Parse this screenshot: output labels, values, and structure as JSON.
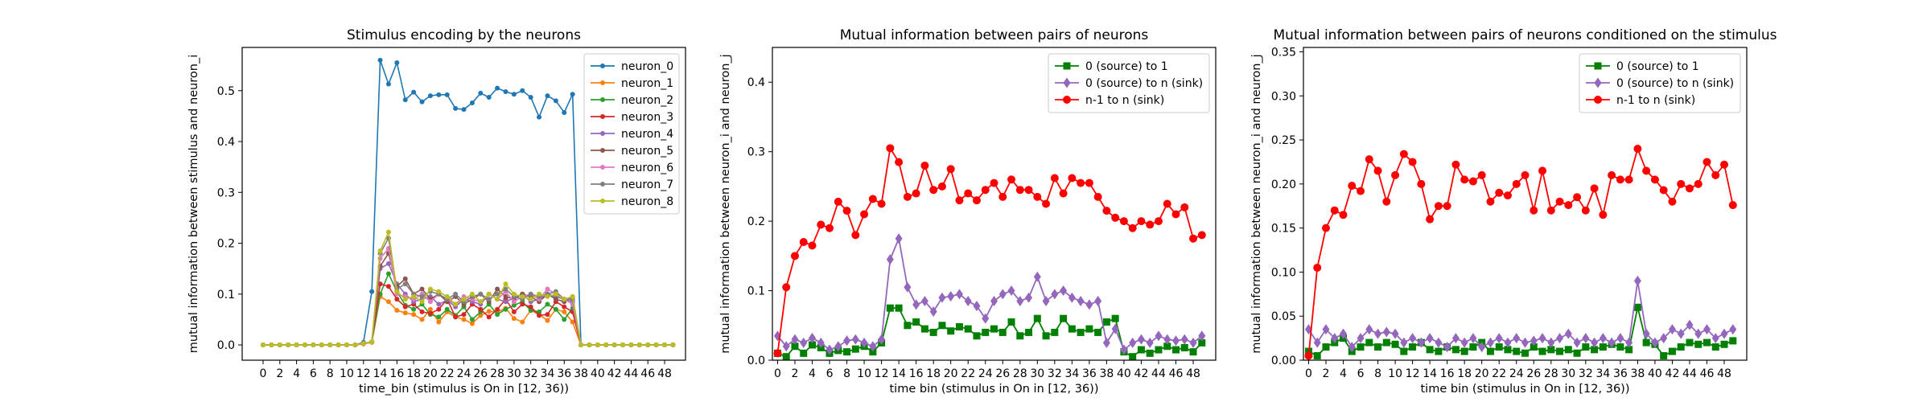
{
  "chart_data": [
    {
      "type": "line",
      "title": "Stimulus encoding by the neurons",
      "xlabel": "time_bin (stimulus is On in [12, 36))",
      "ylabel": "mutual information between stimulus and neuron_i",
      "xlim": [
        -2.5,
        50.5
      ],
      "ylim": [
        -0.03,
        0.585
      ],
      "xticks": [
        "0",
        "2",
        "4",
        "6",
        "8",
        "10",
        "12",
        "14",
        "16",
        "18",
        "20",
        "22",
        "24",
        "26",
        "28",
        "30",
        "32",
        "34",
        "36",
        "38",
        "40",
        "42",
        "44",
        "46",
        "48"
      ],
      "yticks": [
        "0.0",
        "0.1",
        "0.2",
        "0.3",
        "0.4",
        "0.5"
      ],
      "legend_position": "upper right",
      "grid": false,
      "series": [
        {
          "name": "neuron_0",
          "color": "#1f77b4",
          "marker": "circle",
          "values": [
            0,
            0,
            0,
            0,
            0,
            0,
            0,
            0,
            0,
            0,
            0,
            0,
            0.005,
            0.105,
            0.56,
            0.513,
            0.555,
            0.482,
            0.497,
            0.478,
            0.49,
            0.492,
            0.492,
            0.465,
            0.463,
            0.476,
            0.495,
            0.487,
            0.505,
            0.498,
            0.493,
            0.5,
            0.487,
            0.448,
            0.49,
            0.48,
            0.457,
            0.493,
            0,
            0,
            0,
            0,
            0,
            0,
            0,
            0,
            0,
            0,
            0,
            0
          ]
        },
        {
          "name": "neuron_1",
          "color": "#ff7f0e",
          "marker": "circle",
          "values": [
            0,
            0,
            0,
            0,
            0,
            0,
            0,
            0,
            0,
            0,
            0,
            0,
            0.002,
            0.005,
            0.095,
            0.085,
            0.068,
            0.063,
            0.06,
            0.05,
            0.07,
            0.045,
            0.065,
            0.055,
            0.05,
            0.042,
            0.058,
            0.066,
            0.065,
            0.072,
            0.052,
            0.045,
            0.068,
            0.06,
            0.048,
            0.07,
            0.065,
            0.045,
            0,
            0,
            0,
            0,
            0,
            0,
            0,
            0,
            0,
            0,
            0,
            0
          ]
        },
        {
          "name": "neuron_2",
          "color": "#2ca02c",
          "marker": "circle",
          "values": [
            0,
            0,
            0,
            0,
            0,
            0,
            0,
            0,
            0,
            0,
            0,
            0,
            0.003,
            0.006,
            0.1,
            0.14,
            0.105,
            0.078,
            0.07,
            0.08,
            0.06,
            0.055,
            0.07,
            0.058,
            0.075,
            0.05,
            0.065,
            0.08,
            0.06,
            0.07,
            0.078,
            0.085,
            0.068,
            0.065,
            0.08,
            0.07,
            0.05,
            0.072,
            0,
            0,
            0,
            0,
            0,
            0,
            0,
            0,
            0,
            0,
            0,
            0
          ]
        },
        {
          "name": "neuron_3",
          "color": "#d62728",
          "marker": "circle",
          "values": [
            0,
            0,
            0,
            0,
            0,
            0,
            0,
            0,
            0,
            0,
            0,
            0,
            0.003,
            0.006,
            0.12,
            0.115,
            0.09,
            0.075,
            0.08,
            0.065,
            0.062,
            0.07,
            0.09,
            0.055,
            0.06,
            0.08,
            0.07,
            0.055,
            0.07,
            0.09,
            0.065,
            0.08,
            0.075,
            0.058,
            0.06,
            0.085,
            0.075,
            0.065,
            0,
            0,
            0,
            0,
            0,
            0,
            0,
            0,
            0,
            0,
            0,
            0
          ]
        },
        {
          "name": "neuron_4",
          "color": "#9467bd",
          "marker": "circle",
          "values": [
            0,
            0,
            0,
            0,
            0,
            0,
            0,
            0,
            0,
            0,
            0,
            0,
            0.003,
            0.006,
            0.15,
            0.16,
            0.12,
            0.1,
            0.085,
            0.09,
            0.095,
            0.08,
            0.088,
            0.075,
            0.09,
            0.085,
            0.08,
            0.1,
            0.09,
            0.085,
            0.092,
            0.1,
            0.085,
            0.09,
            0.1,
            0.095,
            0.09,
            0.085,
            0,
            0,
            0,
            0,
            0,
            0,
            0,
            0,
            0,
            0,
            0,
            0
          ]
        },
        {
          "name": "neuron_5",
          "color": "#8c564b",
          "marker": "circle",
          "values": [
            0,
            0,
            0,
            0,
            0,
            0,
            0,
            0,
            0,
            0,
            0,
            0,
            0.003,
            0.006,
            0.155,
            0.18,
            0.115,
            0.13,
            0.1,
            0.11,
            0.09,
            0.1,
            0.085,
            0.095,
            0.08,
            0.09,
            0.1,
            0.085,
            0.11,
            0.095,
            0.09,
            0.1,
            0.095,
            0.085,
            0.1,
            0.09,
            0.085,
            0.095,
            0,
            0,
            0,
            0,
            0,
            0,
            0,
            0,
            0,
            0,
            0,
            0
          ]
        },
        {
          "name": "neuron_6",
          "color": "#e377c2",
          "marker": "circle",
          "values": [
            0,
            0,
            0,
            0,
            0,
            0,
            0,
            0,
            0,
            0,
            0,
            0,
            0.003,
            0.006,
            0.17,
            0.19,
            0.1,
            0.095,
            0.09,
            0.1,
            0.085,
            0.1,
            0.09,
            0.08,
            0.095,
            0.09,
            0.085,
            0.1,
            0.09,
            0.105,
            0.085,
            0.095,
            0.1,
            0.09,
            0.11,
            0.1,
            0.09,
            0.08,
            0,
            0,
            0,
            0,
            0,
            0,
            0,
            0,
            0,
            0,
            0,
            0
          ]
        },
        {
          "name": "neuron_7",
          "color": "#7f7f7f",
          "marker": "circle",
          "values": [
            0,
            0,
            0,
            0,
            0,
            0,
            0,
            0,
            0,
            0,
            0,
            0,
            0.003,
            0.006,
            0.18,
            0.21,
            0.11,
            0.12,
            0.1,
            0.095,
            0.105,
            0.1,
            0.09,
            0.1,
            0.085,
            0.095,
            0.1,
            0.09,
            0.1,
            0.11,
            0.095,
            0.09,
            0.1,
            0.095,
            0.1,
            0.105,
            0.09,
            0.09,
            0,
            0,
            0,
            0,
            0,
            0,
            0,
            0,
            0,
            0,
            0,
            0
          ]
        },
        {
          "name": "neuron_8",
          "color": "#bcbd22",
          "marker": "circle",
          "values": [
            0,
            0,
            0,
            0,
            0,
            0,
            0,
            0,
            0,
            0,
            0,
            0,
            0.003,
            0.006,
            0.185,
            0.222,
            0.105,
            0.09,
            0.095,
            0.085,
            0.11,
            0.105,
            0.095,
            0.08,
            0.09,
            0.1,
            0.085,
            0.1,
            0.09,
            0.12,
            0.1,
            0.095,
            0.09,
            0.1,
            0.095,
            0.1,
            0.09,
            0.095,
            0,
            0,
            0,
            0,
            0,
            0,
            0,
            0,
            0,
            0,
            0,
            0
          ]
        }
      ]
    },
    {
      "type": "line",
      "title": "Mutual information between pairs of neurons",
      "xlabel": "time bin (stimulus in On in [12, 36))",
      "ylabel": "mutual information between neuron_i and neuron_j",
      "xlim": [
        -0.6,
        50.6
      ],
      "ylim": [
        0,
        0.45
      ],
      "xticks": [
        "0",
        "2",
        "4",
        "6",
        "8",
        "10",
        "12",
        "14",
        "16",
        "18",
        "20",
        "22",
        "24",
        "26",
        "28",
        "30",
        "32",
        "34",
        "36",
        "38",
        "40",
        "42",
        "44",
        "46",
        "48"
      ],
      "yticks": [
        "0.0",
        "0.1",
        "0.2",
        "0.3",
        "0.4"
      ],
      "legend_position": "upper right",
      "grid": false,
      "series": [
        {
          "name": "0 (source) to 1",
          "color": "#008000",
          "marker": "square",
          "values": [
            0.01,
            0.005,
            0.02,
            0.01,
            0.022,
            0.018,
            0.01,
            0.014,
            0.012,
            0.016,
            0.02,
            0.012,
            0.025,
            0.075,
            0.075,
            0.05,
            0.055,
            0.045,
            0.04,
            0.05,
            0.042,
            0.048,
            0.045,
            0.035,
            0.04,
            0.045,
            0.04,
            0.055,
            0.035,
            0.04,
            0.06,
            0.035,
            0.04,
            0.06,
            0.045,
            0.04,
            0.045,
            0.04,
            0.055,
            0.06,
            0.012,
            0.005,
            0.015,
            0.01,
            0.015,
            0.02,
            0.015,
            0.018,
            0.012,
            0.025
          ]
        },
        {
          "name": "0 (source) to n (sink)",
          "color": "#9467bd",
          "marker": "diamond",
          "values": [
            0.035,
            0.02,
            0.03,
            0.025,
            0.032,
            0.025,
            0.015,
            0.02,
            0.028,
            0.03,
            0.025,
            0.02,
            0.03,
            0.145,
            0.175,
            0.105,
            0.08,
            0.085,
            0.07,
            0.09,
            0.092,
            0.095,
            0.085,
            0.078,
            0.06,
            0.085,
            0.095,
            0.1,
            0.085,
            0.09,
            0.12,
            0.085,
            0.095,
            0.1,
            0.09,
            0.085,
            0.08,
            0.085,
            0.025,
            0.045,
            0.015,
            0.025,
            0.03,
            0.025,
            0.035,
            0.03,
            0.028,
            0.03,
            0.025,
            0.035
          ]
        },
        {
          "name": "n-1 to n (sink)",
          "color": "#ff0000",
          "marker": "circle",
          "values": [
            0.01,
            0.105,
            0.15,
            0.17,
            0.165,
            0.195,
            0.19,
            0.228,
            0.215,
            0.18,
            0.21,
            0.232,
            0.225,
            0.305,
            0.285,
            0.235,
            0.24,
            0.28,
            0.245,
            0.25,
            0.275,
            0.23,
            0.24,
            0.23,
            0.245,
            0.255,
            0.235,
            0.26,
            0.245,
            0.245,
            0.235,
            0.225,
            0.262,
            0.24,
            0.262,
            0.255,
            0.255,
            0.235,
            0.215,
            0.205,
            0.2,
            0.19,
            0.2,
            0.195,
            0.2,
            0.225,
            0.21,
            0.22,
            0.175,
            0.18
          ]
        }
      ]
    },
    {
      "type": "line",
      "title": "Mutual information between pairs of neurons conditioned on the stimulus",
      "xlabel": "time bin (stimulus in On in [12, 36))",
      "ylabel": "mutual information between neuron_i and neuron_j",
      "xlim": [
        -0.6,
        50.6
      ],
      "ylim": [
        0,
        0.355
      ],
      "xticks": [
        "0",
        "2",
        "4",
        "6",
        "8",
        "10",
        "12",
        "14",
        "16",
        "18",
        "20",
        "22",
        "24",
        "26",
        "28",
        "30",
        "32",
        "34",
        "36",
        "38",
        "40",
        "42",
        "44",
        "46",
        "48"
      ],
      "yticks": [
        "0.00",
        "0.05",
        "0.10",
        "0.15",
        "0.20",
        "0.25",
        "0.30",
        "0.35"
      ],
      "legend_position": "upper right",
      "grid": false,
      "series": [
        {
          "name": "0 (source) to 1",
          "color": "#008000",
          "marker": "square",
          "values": [
            0.01,
            0.005,
            0.015,
            0.02,
            0.025,
            0.01,
            0.015,
            0.02,
            0.015,
            0.02,
            0.018,
            0.01,
            0.015,
            0.02,
            0.012,
            0.01,
            0.015,
            0.012,
            0.01,
            0.015,
            0.02,
            0.01,
            0.015,
            0.012,
            0.01,
            0.008,
            0.015,
            0.01,
            0.012,
            0.01,
            0.012,
            0.008,
            0.015,
            0.012,
            0.015,
            0.018,
            0.015,
            0.012,
            0.06,
            0.02,
            0.018,
            0.005,
            0.01,
            0.015,
            0.02,
            0.018,
            0.02,
            0.015,
            0.018,
            0.022
          ]
        },
        {
          "name": "0 (source) to n (sink)",
          "color": "#9467bd",
          "marker": "diamond",
          "values": [
            0.035,
            0.02,
            0.035,
            0.025,
            0.03,
            0.015,
            0.025,
            0.035,
            0.03,
            0.032,
            0.03,
            0.02,
            0.025,
            0.02,
            0.025,
            0.02,
            0.015,
            0.025,
            0.02,
            0.025,
            0.015,
            0.02,
            0.025,
            0.02,
            0.025,
            0.02,
            0.022,
            0.025,
            0.02,
            0.025,
            0.03,
            0.02,
            0.025,
            0.02,
            0.025,
            0.02,
            0.025,
            0.02,
            0.09,
            0.03,
            0.02,
            0.025,
            0.035,
            0.03,
            0.04,
            0.03,
            0.035,
            0.025,
            0.03,
            0.035
          ]
        },
        {
          "name": "n-1 to n (sink)",
          "color": "#ff0000",
          "marker": "circle",
          "values": [
            0.005,
            0.105,
            0.15,
            0.17,
            0.165,
            0.198,
            0.192,
            0.228,
            0.215,
            0.18,
            0.21,
            0.234,
            0.225,
            0.2,
            0.16,
            0.175,
            0.175,
            0.222,
            0.205,
            0.203,
            0.21,
            0.18,
            0.19,
            0.187,
            0.2,
            0.21,
            0.17,
            0.215,
            0.17,
            0.18,
            0.176,
            0.185,
            0.17,
            0.195,
            0.165,
            0.21,
            0.205,
            0.205,
            0.24,
            0.215,
            0.205,
            0.193,
            0.18,
            0.2,
            0.195,
            0.2,
            0.225,
            0.21,
            0.222,
            0.176
          ]
        }
      ]
    }
  ]
}
